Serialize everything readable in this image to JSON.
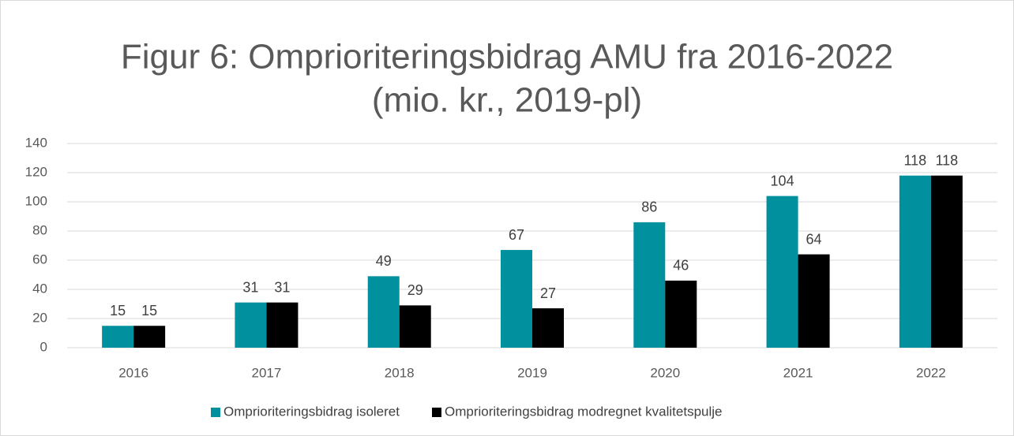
{
  "chart_data": {
    "type": "bar",
    "title": [
      "Figur 6: Omprioriteringsbidrag AMU fra 2016-2022",
      "(mio. kr., 2019-pl)"
    ],
    "categories": [
      "2016",
      "2017",
      "2018",
      "2019",
      "2020",
      "2021",
      "2022"
    ],
    "series": [
      {
        "name": "Omprioriteringsbidrag isoleret",
        "color": "#00909e",
        "values": [
          15,
          31,
          49,
          67,
          86,
          104,
          118
        ]
      },
      {
        "name": "Omprioriteringsbidrag modregnet kvalitetspulje",
        "color": "#000000",
        "values": [
          15,
          31,
          29,
          27,
          46,
          64,
          118
        ]
      }
    ],
    "ylim": [
      0,
      140
    ],
    "yticks": [
      0,
      20,
      40,
      60,
      80,
      100,
      120,
      140
    ],
    "grid": true,
    "legend": "bottom",
    "data_labels": true
  }
}
